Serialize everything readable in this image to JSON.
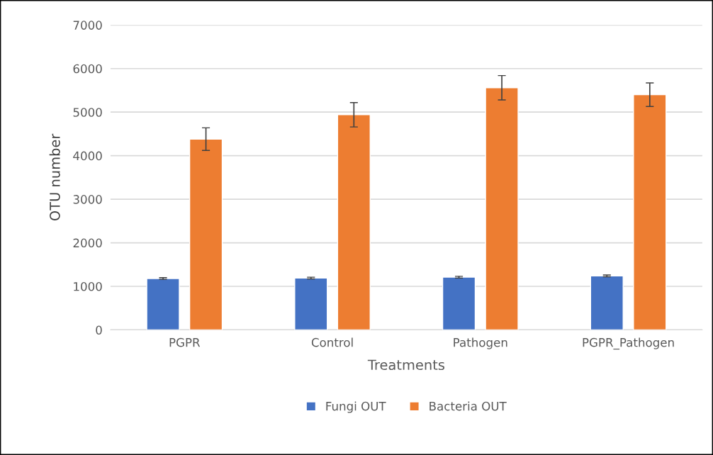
{
  "chart_data": {
    "type": "bar",
    "xlabel": "Treatments",
    "ylabel": "OTU number",
    "categories": [
      "PGPR",
      "Control",
      "Pathogen",
      "PGPR_Pathogen"
    ],
    "series": [
      {
        "name": "Fungi OUT",
        "color": "#4472c4",
        "values": [
          1180,
          1190,
          1210,
          1240
        ],
        "errors": [
          20,
          20,
          20,
          20
        ]
      },
      {
        "name": "Bacteria OUT",
        "color": "#ed7d31",
        "values": [
          4380,
          4940,
          5560,
          5400
        ],
        "errors": [
          260,
          280,
          280,
          270
        ]
      }
    ],
    "ylim": [
      0,
      7000
    ],
    "yticks": [
      0,
      1000,
      2000,
      3000,
      4000,
      5000,
      6000,
      7000
    ],
    "grid": "y",
    "legend": "bottom"
  }
}
